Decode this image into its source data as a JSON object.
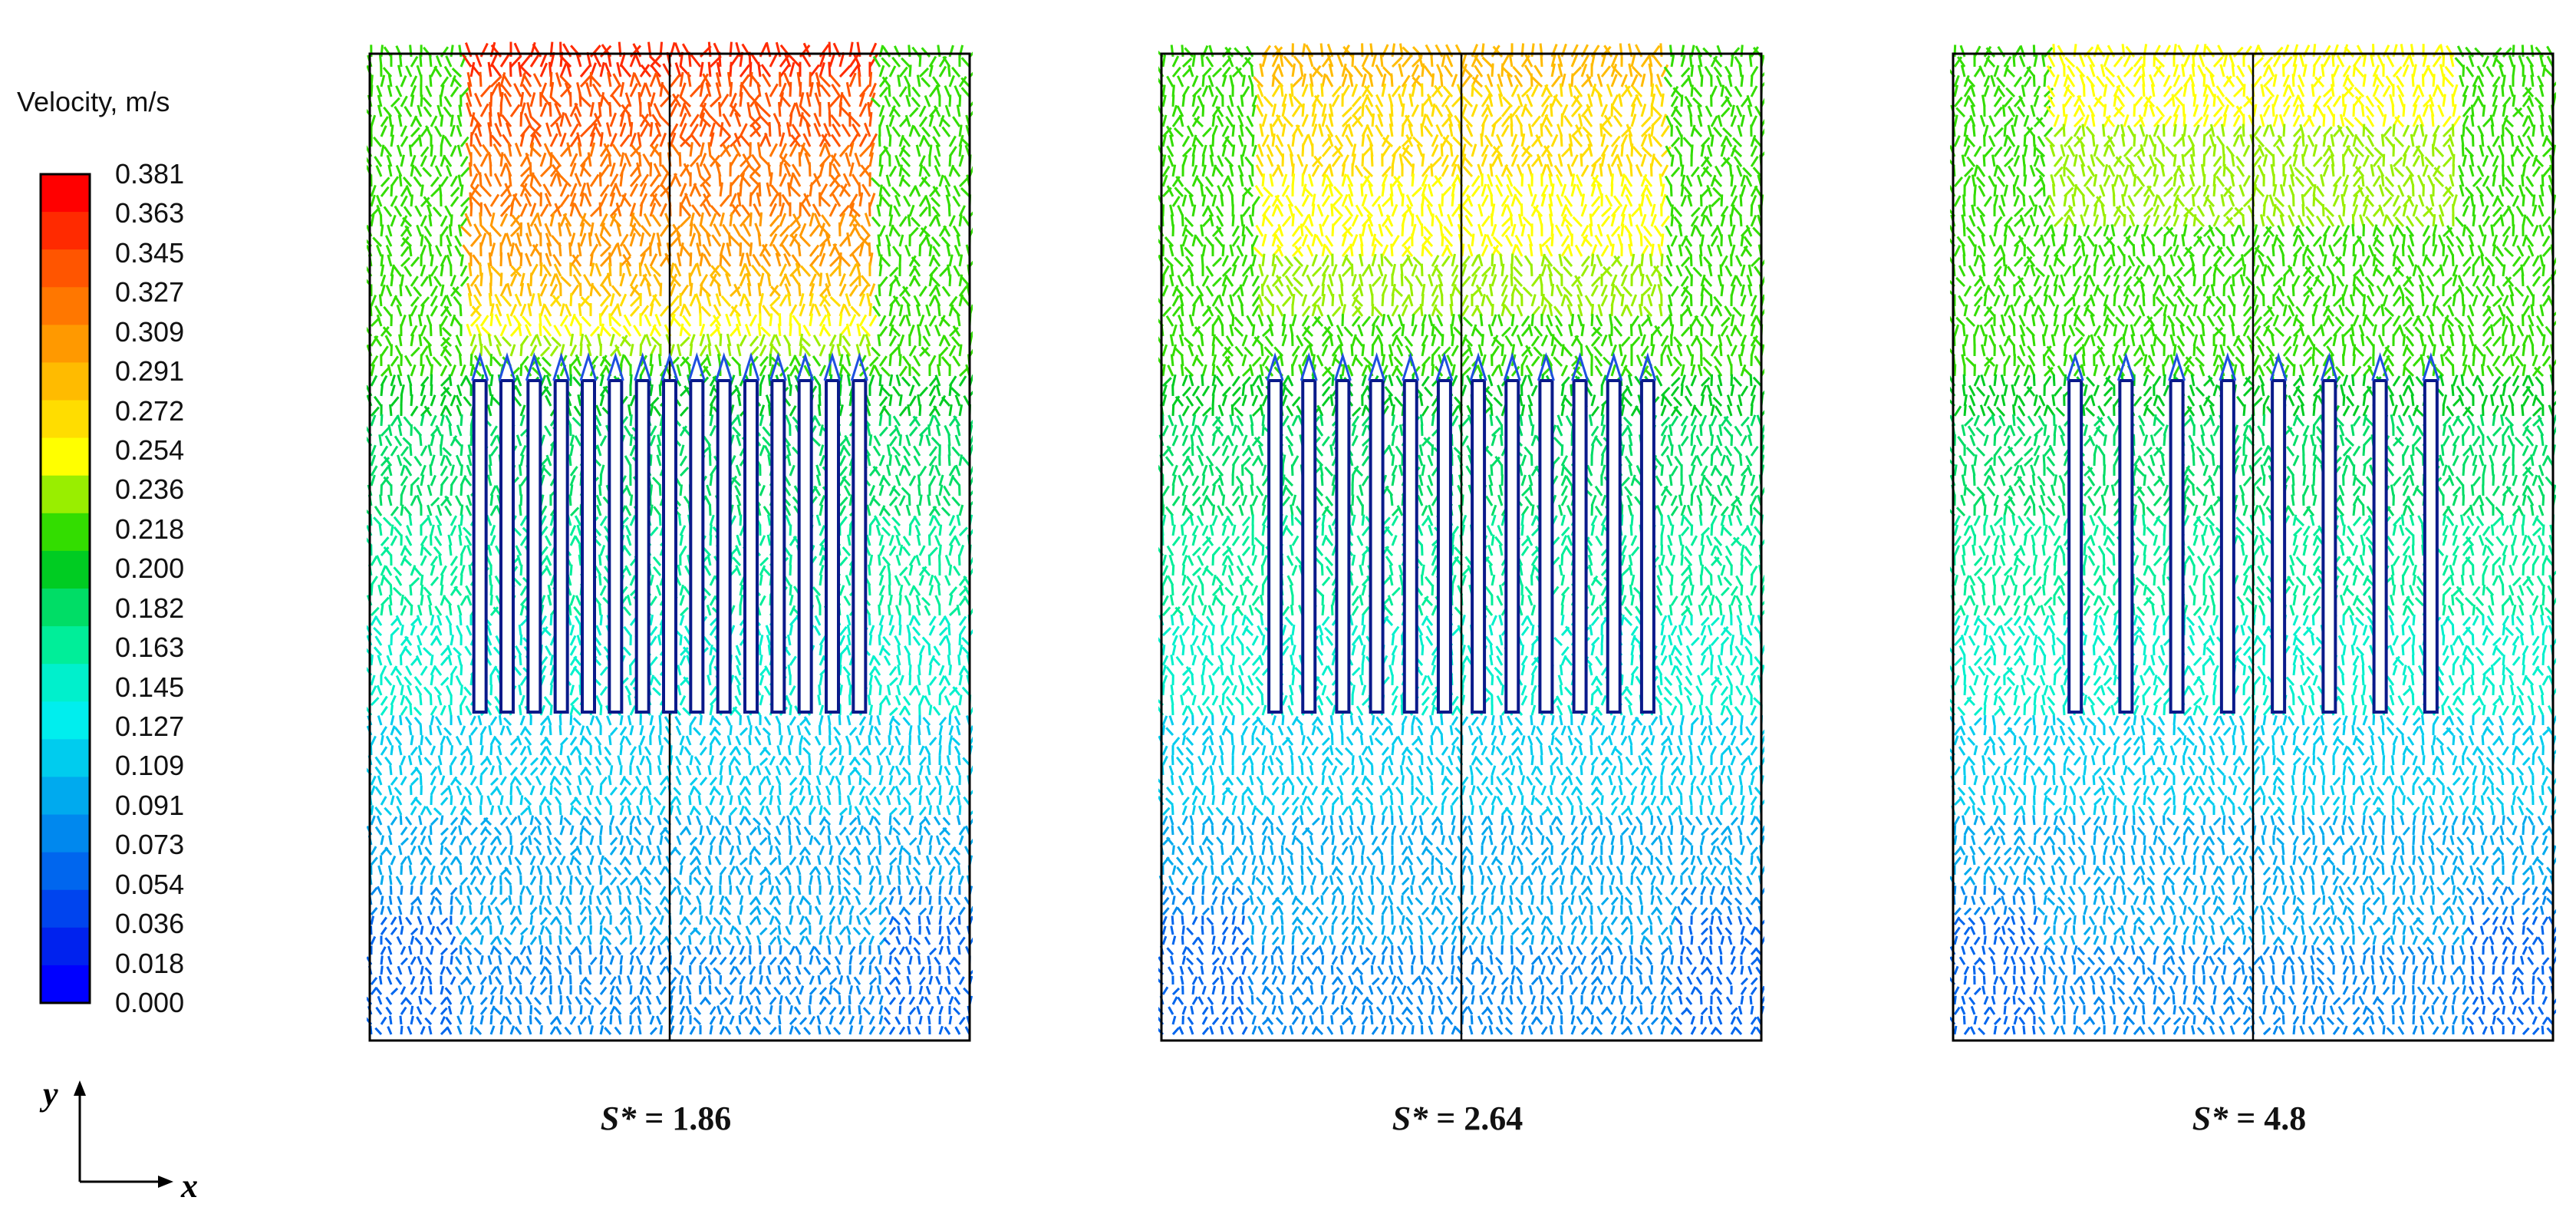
{
  "legend": {
    "title": "Velocity, m/s",
    "ticks": [
      "0.381",
      "0.363",
      "0.345",
      "0.327",
      "0.309",
      "0.291",
      "0.272",
      "0.254",
      "0.236",
      "0.218",
      "0.200",
      "0.182",
      "0.163",
      "0.145",
      "0.127",
      "0.109",
      "0.091",
      "0.073",
      "0.054",
      "0.036",
      "0.018",
      "0.000"
    ],
    "colors": [
      "#ff0000",
      "#ff2a00",
      "#ff5500",
      "#ff7700",
      "#ff9900",
      "#ffbb00",
      "#ffdd00",
      "#ffff00",
      "#99ee00",
      "#33dd00",
      "#00cc22",
      "#00dd66",
      "#00ee99",
      "#00f0cc",
      "#00eeee",
      "#00ccee",
      "#00aaee",
      "#0088ee",
      "#0066ee",
      "#0044ee",
      "#0022ee",
      "#0000ff"
    ]
  },
  "panels": [
    {
      "caption_var": "S*",
      "caption_value": "= 1.86",
      "plates": 15
    },
    {
      "caption_var": "S*",
      "caption_value": "= 2.64",
      "plates": 12
    },
    {
      "caption_var": "S*",
      "caption_value": "= 4.8",
      "plates": 8
    }
  ],
  "axes": {
    "y_label": "y",
    "x_label": "x"
  }
}
